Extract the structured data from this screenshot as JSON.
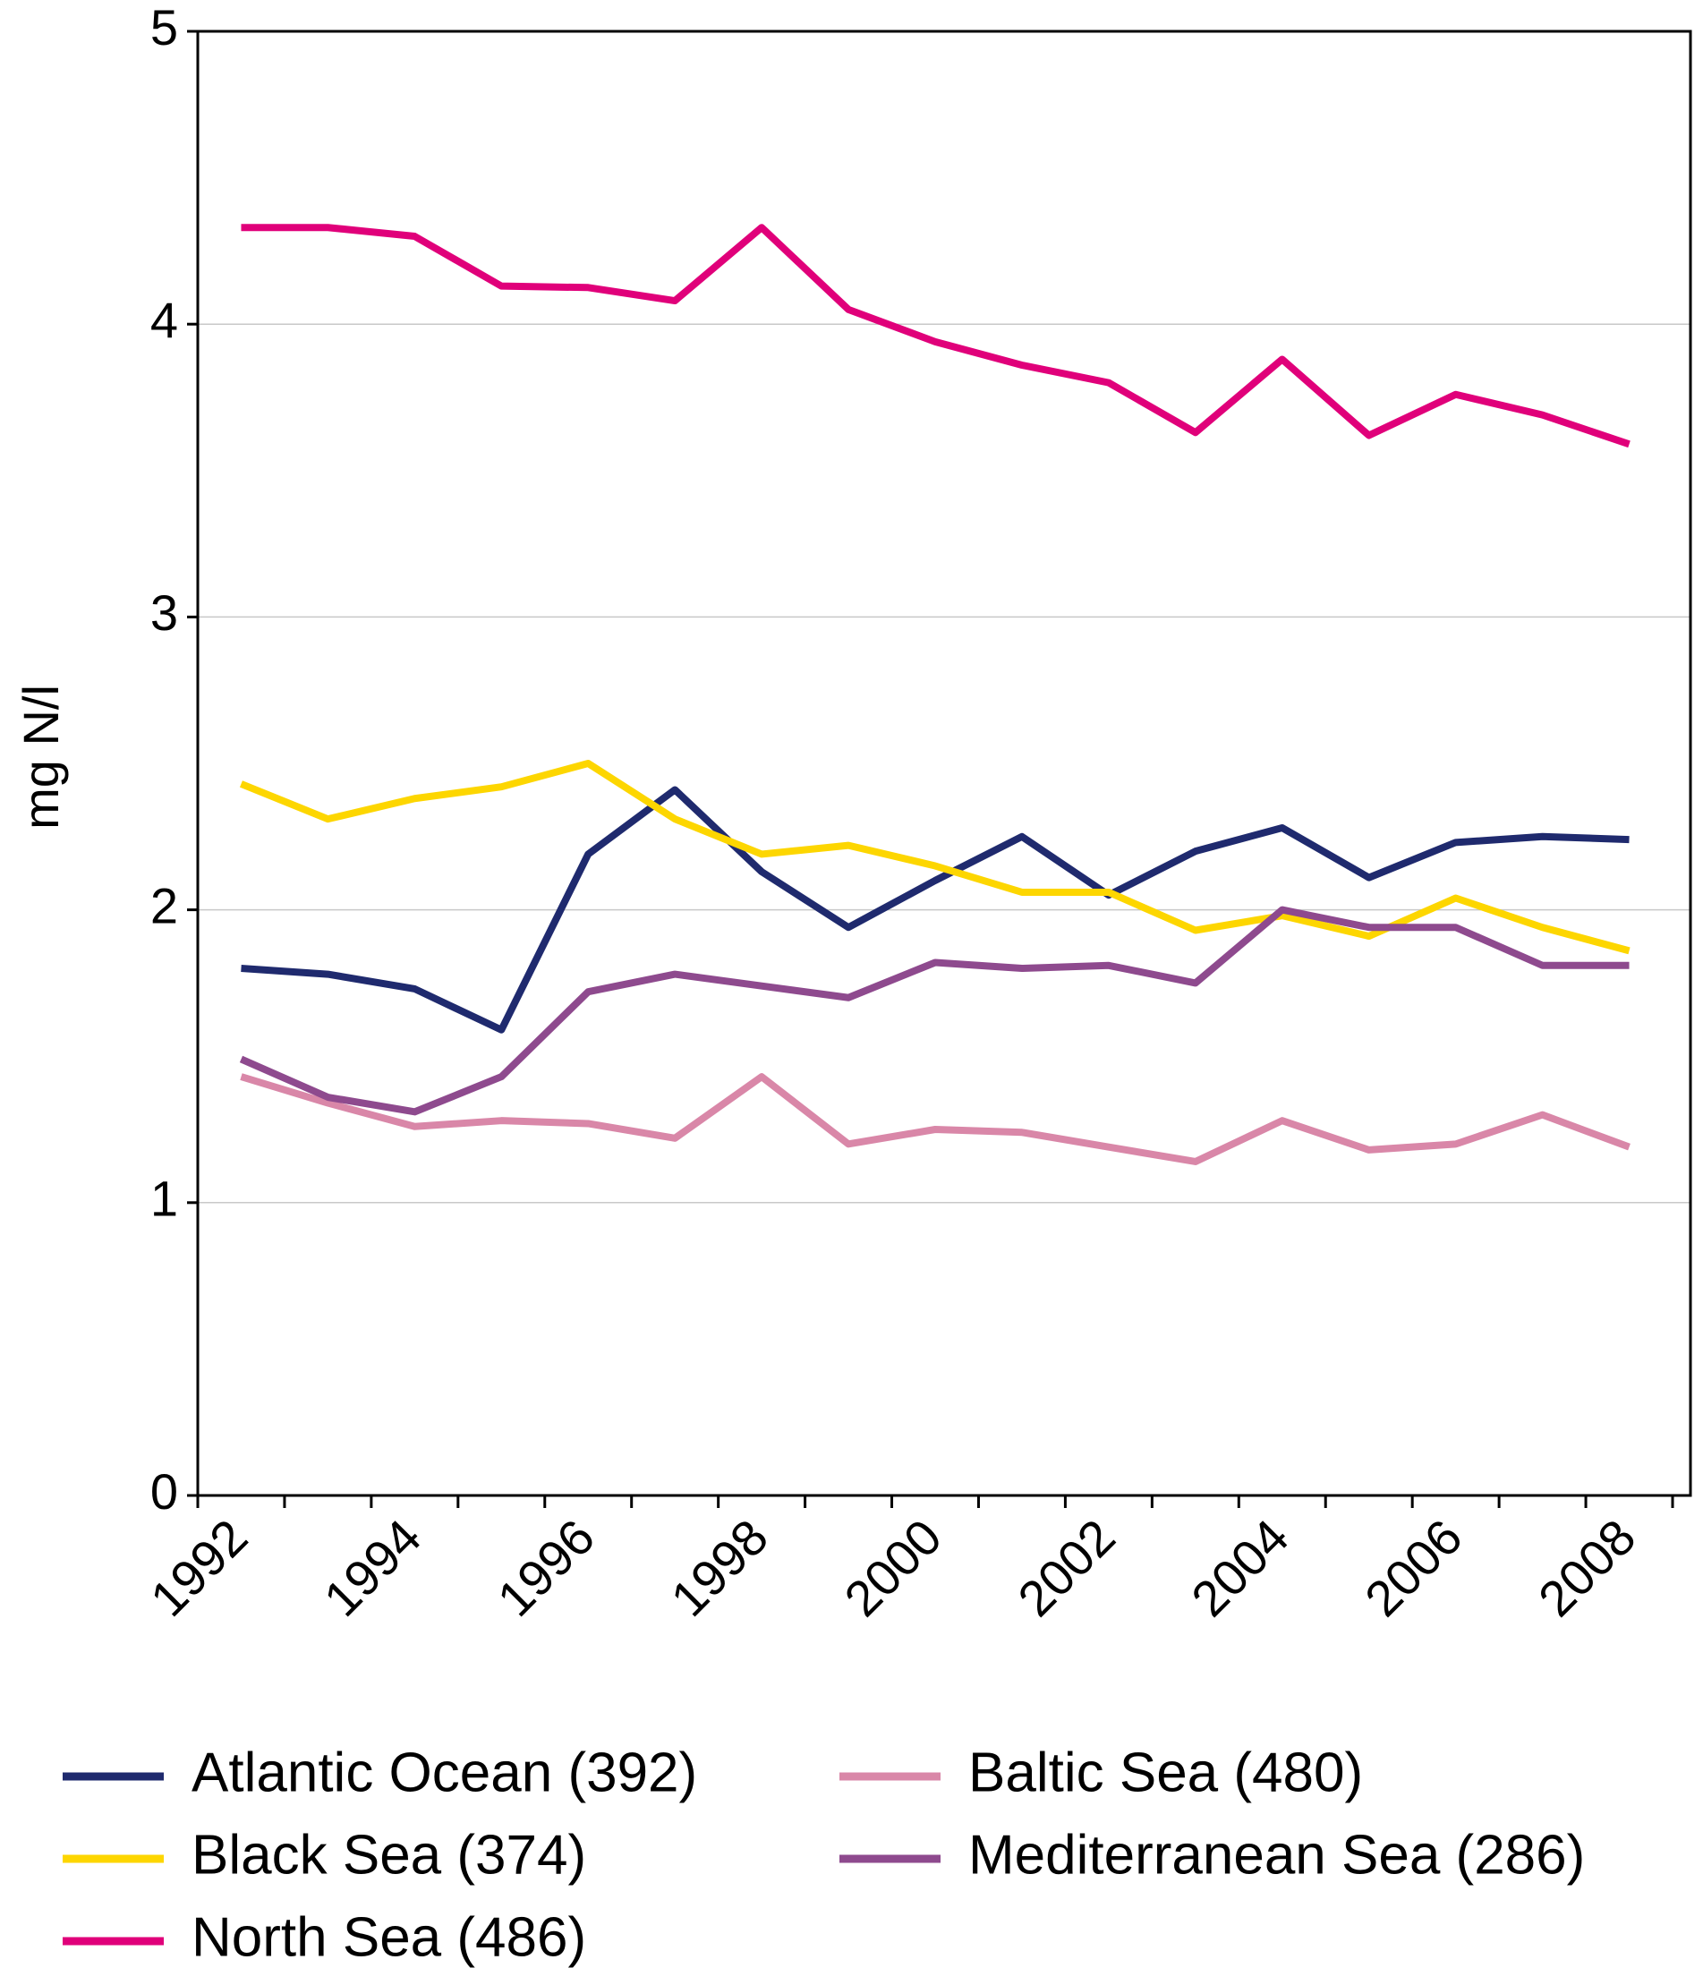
{
  "chart_data": {
    "type": "line",
    "y_label": "mg N/l",
    "categories": [
      "1992",
      null,
      "1994",
      null,
      "1996",
      null,
      "1998",
      null,
      "2000",
      null,
      "2002",
      null,
      "2004",
      null,
      "2006",
      null,
      "2008"
    ],
    "ylim": [
      0,
      5
    ],
    "yticks": [
      0,
      1,
      2,
      3,
      4,
      5
    ],
    "grid": true,
    "series": [
      {
        "name": "Atlantic Ocean (392)",
        "color": "#1f2a6e",
        "values": [
          1.8,
          1.78,
          1.73,
          1.59,
          2.19,
          2.41,
          2.13,
          1.94,
          2.1,
          2.25,
          2.05,
          2.2,
          2.28,
          2.11,
          2.23,
          2.25,
          2.24
        ]
      },
      {
        "name": "Black Sea (374)",
        "color": "#fdd600",
        "values": [
          2.43,
          2.31,
          2.38,
          2.42,
          2.5,
          2.31,
          2.19,
          2.22,
          2.15,
          2.06,
          2.06,
          1.93,
          1.98,
          1.91,
          2.04,
          1.94,
          1.86
        ]
      },
      {
        "name": "North Sea (486)",
        "color": "#e0007a",
        "values": [
          4.33,
          4.33,
          4.3,
          4.13,
          4.125,
          4.08,
          4.33,
          4.05,
          3.94,
          3.86,
          3.8,
          3.63,
          3.88,
          3.62,
          3.76,
          3.69,
          3.59
        ]
      },
      {
        "name": "Baltic Sea (480)",
        "color": "#d987a8",
        "values": [
          1.43,
          1.34,
          1.26,
          1.28,
          1.27,
          1.22,
          1.43,
          1.2,
          1.25,
          1.24,
          1.19,
          1.14,
          1.28,
          1.18,
          1.2,
          1.3,
          1.19
        ]
      },
      {
        "name": "Mediterranean Sea (286)",
        "color": "#8e4a8e",
        "values": [
          1.49,
          1.36,
          1.31,
          1.43,
          1.72,
          1.78,
          1.74,
          1.7,
          1.82,
          1.8,
          1.81,
          1.75,
          2.0,
          1.94,
          1.94,
          1.81,
          1.81
        ]
      }
    ]
  }
}
